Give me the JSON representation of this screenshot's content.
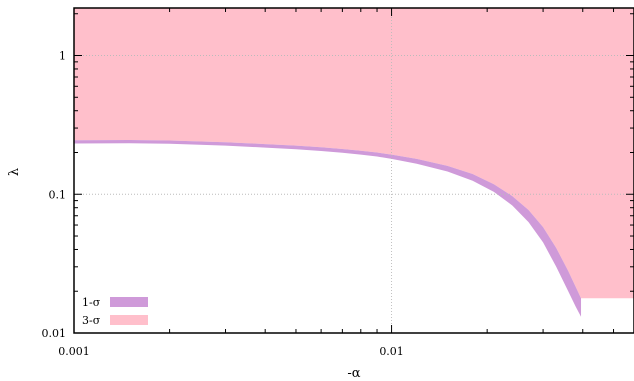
{
  "chart_data": {
    "type": "area",
    "xlabel": "-α",
    "ylabel": "λ",
    "xscale": "log",
    "yscale": "log",
    "xlim": [
      0.001,
      0.058
    ],
    "ylim": [
      0.01,
      2.2
    ],
    "x_ticks": [
      {
        "value": 0.001,
        "label": "0.001"
      },
      {
        "value": 0.01,
        "label": "0.01"
      }
    ],
    "y_ticks": [
      {
        "value": 0.01,
        "label": "0.01"
      },
      {
        "value": 0.1,
        "label": "0.1"
      },
      {
        "value": 1,
        "label": "1"
      }
    ],
    "grid": "dotted",
    "legend_position": "bottom-left",
    "series": [
      {
        "name": "1-σ",
        "color": "#cf9ad9",
        "lower": [
          [
            0.001,
            0.232
          ],
          [
            0.0015,
            0.233
          ],
          [
            0.002,
            0.231
          ],
          [
            0.003,
            0.224
          ],
          [
            0.004,
            0.217
          ],
          [
            0.005,
            0.211
          ],
          [
            0.006,
            0.205
          ],
          [
            0.007,
            0.199
          ],
          [
            0.008,
            0.193
          ],
          [
            0.009,
            0.187
          ],
          [
            0.01,
            0.18
          ],
          [
            0.012,
            0.166
          ],
          [
            0.015,
            0.146
          ],
          [
            0.018,
            0.125
          ],
          [
            0.021,
            0.104
          ],
          [
            0.024,
            0.083
          ],
          [
            0.027,
            0.063
          ],
          [
            0.03,
            0.045
          ],
          [
            0.033,
            0.03
          ],
          [
            0.036,
            0.02
          ],
          [
            0.038,
            0.0155
          ],
          [
            0.0395,
            0.0131
          ]
        ],
        "upper": [
          [
            0.001,
            0.245
          ],
          [
            0.0015,
            0.246
          ],
          [
            0.002,
            0.244
          ],
          [
            0.003,
            0.237
          ],
          [
            0.004,
            0.23
          ],
          [
            0.005,
            0.224
          ],
          [
            0.006,
            0.218
          ],
          [
            0.007,
            0.212
          ],
          [
            0.008,
            0.206
          ],
          [
            0.009,
            0.2
          ],
          [
            0.01,
            0.193
          ],
          [
            0.012,
            0.18
          ],
          [
            0.015,
            0.16
          ],
          [
            0.018,
            0.14
          ],
          [
            0.021,
            0.118
          ],
          [
            0.024,
            0.097
          ],
          [
            0.027,
            0.077
          ],
          [
            0.03,
            0.058
          ],
          [
            0.033,
            0.041
          ],
          [
            0.036,
            0.028
          ],
          [
            0.038,
            0.0215
          ],
          [
            0.0395,
            0.0178
          ]
        ]
      },
      {
        "name": "3-σ",
        "color": "#ffbfcb",
        "lower": [
          [
            0.001,
            0.245
          ],
          [
            0.0015,
            0.246
          ],
          [
            0.002,
            0.244
          ],
          [
            0.003,
            0.237
          ],
          [
            0.004,
            0.23
          ],
          [
            0.005,
            0.224
          ],
          [
            0.006,
            0.218
          ],
          [
            0.007,
            0.212
          ],
          [
            0.008,
            0.206
          ],
          [
            0.009,
            0.2
          ],
          [
            0.01,
            0.193
          ],
          [
            0.012,
            0.18
          ],
          [
            0.015,
            0.16
          ],
          [
            0.018,
            0.14
          ],
          [
            0.021,
            0.118
          ],
          [
            0.024,
            0.097
          ],
          [
            0.027,
            0.077
          ],
          [
            0.03,
            0.058
          ],
          [
            0.033,
            0.041
          ],
          [
            0.036,
            0.028
          ],
          [
            0.038,
            0.0215
          ],
          [
            0.0395,
            0.0178
          ]
        ],
        "upper": [
          [
            0.001,
            2.2
          ],
          [
            0.058,
            2.2
          ]
        ]
      }
    ]
  }
}
